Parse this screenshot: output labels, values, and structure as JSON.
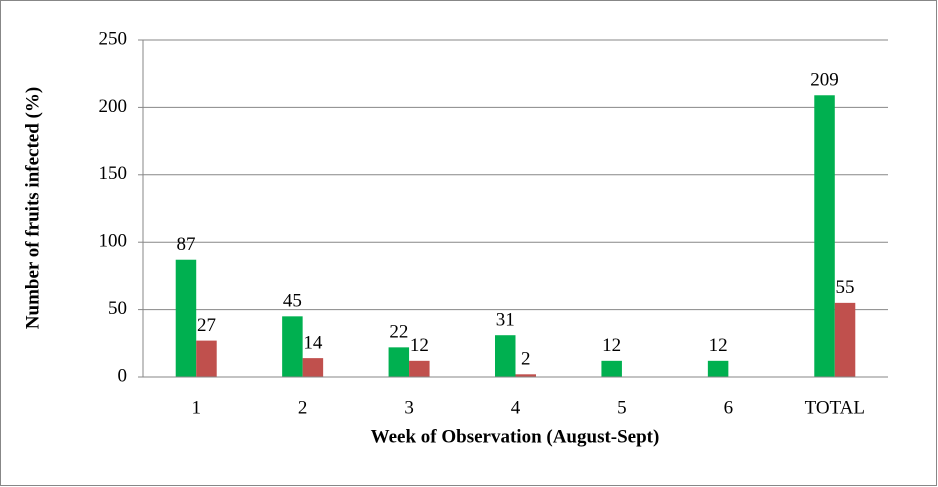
{
  "chart_data": {
    "type": "bar",
    "y_label": "Number of fruits infected (%)",
    "x_label": "Week of Observation (August-Sept)",
    "categories": [
      "1",
      "2",
      "3",
      "4",
      "5",
      "6",
      "TOTAL"
    ],
    "series": [
      {
        "color": "#00b050",
        "values": [
          87,
          45,
          22,
          31,
          12,
          12,
          209
        ]
      },
      {
        "color": "#c0504d",
        "values": [
          27,
          14,
          12,
          2,
          null,
          null,
          55
        ]
      }
    ],
    "ylim": [
      0,
      250
    ],
    "yticks": [
      0,
      50,
      100,
      150,
      200,
      250
    ],
    "grid": true
  }
}
